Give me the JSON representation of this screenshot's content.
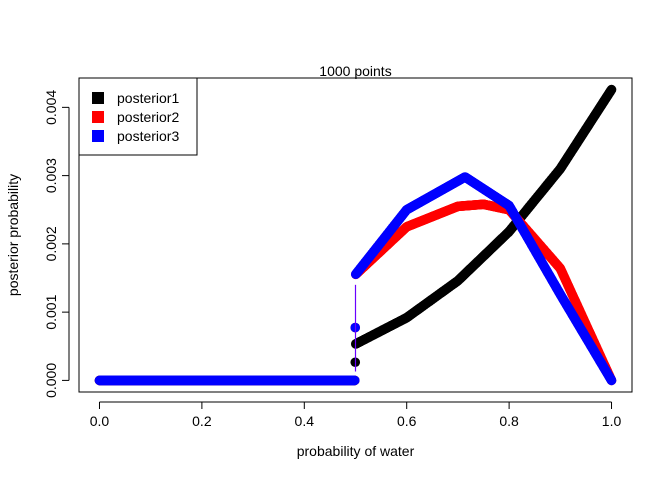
{
  "chart_data": {
    "type": "scatter",
    "title": "1000 points",
    "xlabel": "probability of water",
    "ylabel": "posterior probability",
    "xlim": [
      -0.04,
      1.04
    ],
    "ylim": [
      -0.00017,
      0.00443
    ],
    "x_ticks": [
      0.0,
      0.2,
      0.4,
      0.6,
      0.8,
      1.0
    ],
    "x_tick_labels": [
      "0.0",
      "0.2",
      "0.4",
      "0.6",
      "0.8",
      "1.0"
    ],
    "y_ticks": [
      0.0,
      0.001,
      0.002,
      0.003,
      0.004
    ],
    "y_tick_labels": [
      "0.000",
      "0.001",
      "0.002",
      "0.003",
      "0.004"
    ],
    "grid": false,
    "legend_position": "top-left",
    "n_points": 1000,
    "series": [
      {
        "name": "posterior1",
        "color": "#000000",
        "x": [
          0.0,
          0.1,
          0.2,
          0.3,
          0.4,
          0.499,
          0.5,
          0.6,
          0.7,
          0.8,
          0.9,
          1.0
        ],
        "y": [
          0.0,
          0.0,
          0.0,
          0.0,
          0.0,
          0.0,
          0.000532,
          0.000919,
          0.00146,
          0.00218,
          0.0031,
          0.00426
        ]
      },
      {
        "name": "posterior2",
        "color": "#ff0000",
        "x": [
          0.0,
          0.1,
          0.2,
          0.3,
          0.4,
          0.499,
          0.5,
          0.6,
          0.7,
          0.75,
          0.8,
          0.9,
          1.0
        ],
        "y": [
          0.0,
          0.0,
          0.0,
          0.0,
          0.0,
          0.0,
          0.00155,
          0.00225,
          0.00255,
          0.00258,
          0.0025,
          0.00164,
          0.0
        ]
      },
      {
        "name": "posterior3",
        "color": "#0000ff",
        "x": [
          0.0,
          0.1,
          0.2,
          0.3,
          0.4,
          0.499,
          0.5,
          0.6,
          0.714,
          0.8,
          0.9,
          1.0
        ],
        "y": [
          0.0,
          0.0,
          0.0,
          0.0,
          0.0,
          0.0,
          0.00155,
          0.0025,
          0.00298,
          0.00256,
          0.00126,
          0.0
        ]
      }
    ],
    "annotations": [
      {
        "type": "vertical-line",
        "x": 0.5,
        "y_from": 0.00013,
        "y_to": 0.0014,
        "color": "#6a00ff"
      }
    ]
  }
}
